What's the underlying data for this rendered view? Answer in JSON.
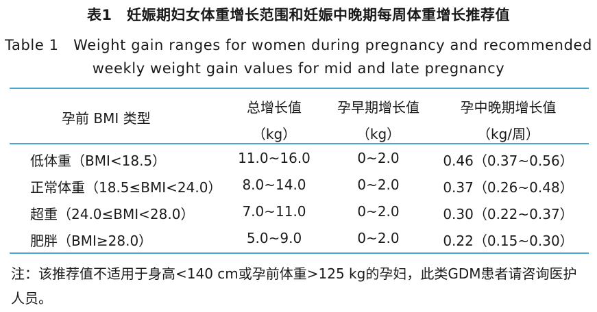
{
  "caption": {
    "cn": "表1　妊娠期妇女体重增长范围和妊娠中晚期每周体重增长推荐值",
    "en_line1": "Table 1　Weight gain ranges for women during pregnancy and recommended",
    "en_line2": "weekly weight gain values for mid and late pregnancy"
  },
  "table": {
    "headers": {
      "bmi_type": "孕前 BMI 类型",
      "total_gain": "总增长值",
      "total_gain_unit": "（kg）",
      "early_gain": "孕早期增长值",
      "early_gain_unit": "（kg）",
      "midlate_gain": "孕中晚期增长值",
      "midlate_gain_unit": "（kg/周）"
    },
    "rows": [
      {
        "category": "低体重（BMI<18.5）",
        "total": "11.0~16.0",
        "early": "0~2.0",
        "midlate": "0.46（0.37~0.56）"
      },
      {
        "category": "正常体重（18.5≤BMI<24.0）",
        "total": "8.0~14.0",
        "early": "0~2.0",
        "midlate": "0.37（0.26~0.48）"
      },
      {
        "category": "超重（24.0≤BMI<28.0）",
        "total": "7.0~11.0",
        "early": "0~2.0",
        "midlate": "0.30（0.22~0.37）"
      },
      {
        "category": "肥胖（BMI≥28.0）",
        "total": "5.0~9.0",
        "early": "0~2.0",
        "midlate": "0.22（0.15~0.30）"
      }
    ]
  },
  "note": "注：该推荐值不适用于身高<140 cm或孕前体重>125 kg的孕妇，此类GDM患者请咨询医护人员。",
  "colors": {
    "rule": "#4aa7cf",
    "text": "#1a1a1a"
  }
}
